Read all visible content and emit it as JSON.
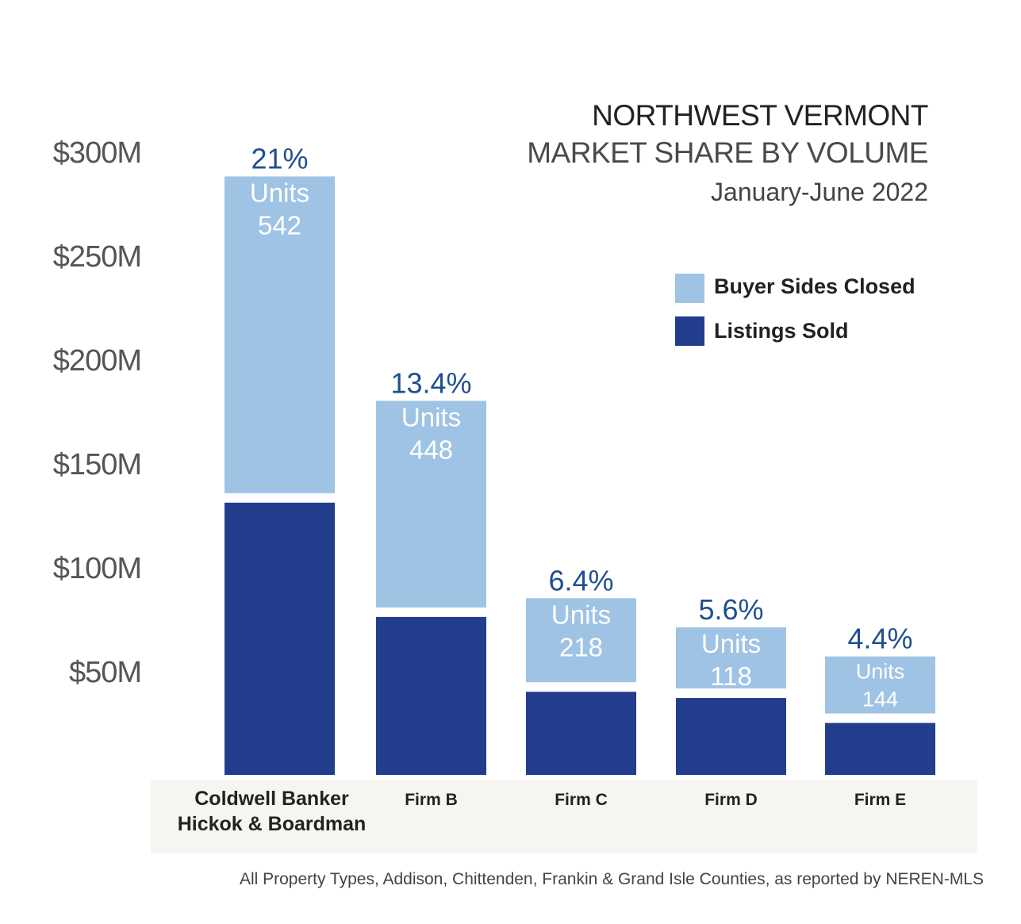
{
  "title": "NORTHWEST VERMONT",
  "subtitle": "MARKET SHARE BY VOLUME",
  "period": "January-June 2022",
  "footnote": "All Property Types, Addison, Chittenden, Frankin & Grand Isle Counties, as reported by NEREN-MLS",
  "units_label": "Units",
  "colors": {
    "listings": "#233d8d",
    "buyer": "#9fc3e4",
    "share_text": "#1f4f8f",
    "axis_text": "#555555",
    "title_text": "#222222",
    "subtitle_text": "#4a4a4a",
    "label_band": "#f6f5f2"
  },
  "chart_data": {
    "type": "bar",
    "stacked": true,
    "categories": [
      "Coldwell Banker Hickok & Boardman",
      "Firm B",
      "Firm C",
      "Firm D",
      "Firm E"
    ],
    "category_lines": [
      [
        "Coldwell Banker",
        "Hickok & Boardman"
      ],
      [
        "Firm B"
      ],
      [
        "Firm C"
      ],
      [
        "Firm D"
      ],
      [
        "Firm E"
      ]
    ],
    "series": [
      {
        "name": "Listings Sold",
        "values": [
          131,
          76,
          40,
          37,
          25
        ]
      },
      {
        "name": "Buyer Sides Closed",
        "values": [
          157,
          104,
          45,
          34,
          32
        ]
      }
    ],
    "market_share": [
      "21%",
      "13.4%",
      "6.4%",
      "5.6%",
      "4.4%"
    ],
    "units": [
      "542",
      "448",
      "218",
      "118",
      "144"
    ],
    "yticks": [
      "$50M",
      "$100M",
      "$150M",
      "$200M",
      "$250M",
      "$300M"
    ],
    "ytick_values": [
      50,
      100,
      150,
      200,
      250,
      300
    ],
    "ylim": [
      0,
      300
    ],
    "grid": false,
    "legend_position": "top-right"
  }
}
